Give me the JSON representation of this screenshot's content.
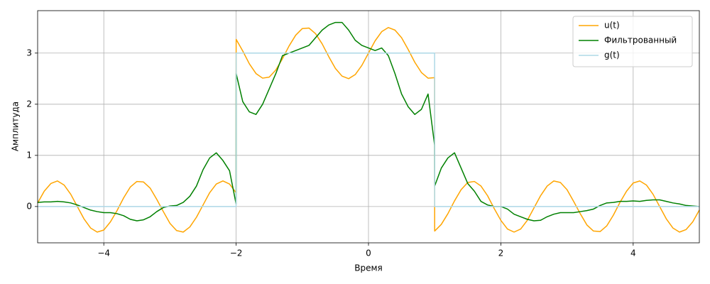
{
  "chart_data": {
    "type": "line",
    "xlabel": "Время",
    "ylabel": "Амплитуда",
    "x": [
      -5.0,
      -4.9,
      -4.8,
      -4.7,
      -4.6,
      -4.5,
      -4.4,
      -4.3,
      -4.2,
      -4.1,
      -4.0,
      -3.9,
      -3.8,
      -3.7,
      -3.6,
      -3.5,
      -3.4,
      -3.3,
      -3.2,
      -3.1,
      -3.0,
      -2.9,
      -2.8,
      -2.7,
      -2.6,
      -2.5,
      -2.4,
      -2.3,
      -2.2,
      -2.1,
      -2.001,
      -2.0,
      -1.9,
      -1.8,
      -1.7,
      -1.6,
      -1.5,
      -1.4,
      -1.3,
      -1.2,
      -1.1,
      -1.0,
      -0.9,
      -0.8,
      -0.7,
      -0.6,
      -0.5,
      -0.4,
      -0.3,
      -0.2,
      -0.1,
      0.0,
      0.1,
      0.2,
      0.3,
      0.4,
      0.5,
      0.6,
      0.7,
      0.8,
      0.9,
      0.999,
      1.0,
      1.1,
      1.2,
      1.3,
      1.4,
      1.5,
      1.6,
      1.7,
      1.8,
      1.9,
      2.0,
      2.1,
      2.2,
      2.3,
      2.4,
      2.5,
      2.6,
      2.7,
      2.8,
      2.9,
      3.0,
      3.1,
      3.2,
      3.3,
      3.4,
      3.5,
      3.6,
      3.7,
      3.8,
      3.9,
      4.0,
      4.1,
      4.2,
      4.3,
      4.4,
      4.5,
      4.6,
      4.7,
      4.8,
      4.9,
      5.0
    ],
    "series": [
      {
        "name": "u(t)",
        "color": "#ffa500",
        "values": [
          0.07,
          0.3,
          0.45,
          0.5,
          0.42,
          0.24,
          0,
          -0.24,
          -0.42,
          -0.5,
          -0.46,
          -0.3,
          -0.08,
          0.17,
          0.38,
          0.49,
          0.48,
          0.36,
          0.14,
          -0.1,
          -0.33,
          -0.47,
          -0.5,
          -0.4,
          -0.21,
          0.03,
          0.27,
          0.44,
          0.5,
          0.44,
          0.27,
          3.27,
          3.04,
          2.79,
          2.6,
          2.51,
          2.53,
          2.67,
          2.89,
          3.14,
          3.35,
          3.48,
          3.49,
          3.38,
          3.18,
          2.93,
          2.7,
          2.55,
          2.5,
          2.58,
          2.76,
          3,
          3.24,
          3.42,
          3.5,
          3.45,
          3.3,
          3.07,
          2.82,
          2.62,
          2.51,
          2.52,
          -0.48,
          -0.35,
          -0.14,
          0.11,
          0.33,
          0.47,
          0.49,
          0.4,
          0.21,
          -0.04,
          -0.27,
          -0.44,
          -0.5,
          -0.44,
          -0.27,
          -0.03,
          0.21,
          0.4,
          0.5,
          0.47,
          0.33,
          0.1,
          -0.14,
          -0.36,
          -0.48,
          -0.49,
          -0.38,
          -0.17,
          0.08,
          0.3,
          0.46,
          0.5,
          0.42,
          0.24,
          0,
          -0.24,
          -0.42,
          -0.5,
          -0.45,
          -0.3,
          -0.07
        ]
      },
      {
        "name": "Фильтрованный",
        "color": "#008000",
        "values": [
          0.08,
          0.09,
          0.09,
          0.1,
          0.09,
          0.07,
          0.03,
          -0.02,
          -0.07,
          -0.1,
          -0.12,
          -0.12,
          -0.14,
          -0.18,
          -0.25,
          -0.28,
          -0.26,
          -0.2,
          -0.1,
          -0.02,
          0.01,
          0.02,
          0.08,
          0.2,
          0.4,
          0.72,
          0.95,
          1.05,
          0.9,
          0.7,
          0.05,
          2.6,
          2.05,
          1.85,
          1.8,
          2.0,
          2.3,
          2.6,
          2.95,
          3.0,
          3.05,
          3.1,
          3.15,
          3.3,
          3.45,
          3.55,
          3.6,
          3.6,
          3.45,
          3.25,
          3.15,
          3.1,
          3.05,
          3.1,
          2.95,
          2.6,
          2.2,
          1.95,
          1.8,
          1.9,
          2.2,
          1.2,
          0.4,
          0.75,
          0.95,
          1.05,
          0.75,
          0.45,
          0.3,
          0.1,
          0.03,
          0.0,
          0.0,
          -0.05,
          -0.15,
          -0.2,
          -0.25,
          -0.28,
          -0.27,
          -0.2,
          -0.15,
          -0.12,
          -0.12,
          -0.12,
          -0.1,
          -0.08,
          -0.05,
          0.02,
          0.07,
          0.08,
          0.1,
          0.1,
          0.11,
          0.1,
          0.12,
          0.13,
          0.13,
          0.1,
          0.07,
          0.05,
          0.02,
          0.01,
          0.0
        ]
      },
      {
        "name": "g(t)",
        "color": "#add8e6",
        "values": [
          0,
          0,
          0,
          0,
          0,
          0,
          0,
          0,
          0,
          0,
          0,
          0,
          0,
          0,
          0,
          0,
          0,
          0,
          0,
          0,
          0,
          0,
          0,
          0,
          0,
          0,
          0,
          0,
          0,
          0,
          0,
          3,
          3,
          3,
          3,
          3,
          3,
          3,
          3,
          3,
          3,
          3,
          3,
          3,
          3,
          3,
          3,
          3,
          3,
          3,
          3,
          3,
          3,
          3,
          3,
          3,
          3,
          3,
          3,
          3,
          3,
          3,
          0,
          0,
          0,
          0,
          0,
          0,
          0,
          0,
          0,
          0,
          0,
          0,
          0,
          0,
          0,
          0,
          0,
          0,
          0,
          0,
          0,
          0,
          0,
          0,
          0,
          0,
          0,
          0,
          0,
          0,
          0,
          0,
          0,
          0,
          0,
          0,
          0,
          0,
          0,
          0,
          0
        ]
      }
    ],
    "xlim": [
      -5,
      5
    ],
    "ylim": [
      -0.71,
      3.83
    ],
    "xticks": [
      {
        "value": -4,
        "label": "−4"
      },
      {
        "value": -2,
        "label": "−2"
      },
      0,
      2,
      4
    ],
    "yticks": [
      0,
      1,
      2,
      3
    ],
    "grid": true,
    "legend": "upper right"
  }
}
